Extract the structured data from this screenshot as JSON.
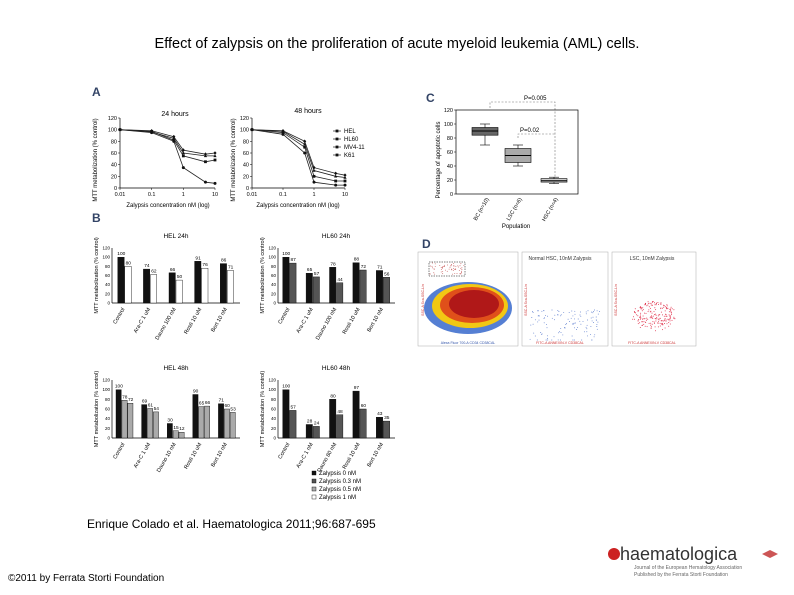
{
  "slide": {
    "title": "Effect of zalypsis on the proliferation of acute myeloid leukemia (AML) cells.",
    "citation": "Enrique Colado et al. Haematologica 2011;96:687-695",
    "copyright": "©2011 by Ferrata Storti Foundation"
  },
  "logo": {
    "name": "haematologica",
    "subtitle1": "Journal of the European Hematology Association",
    "subtitle2": "Published by the Ferrata Storti Foundation"
  },
  "panels": {
    "a_label": "A",
    "b_label": "B",
    "c_label": "C",
    "d_label": "D",
    "a_title_24": "24 hours",
    "a_title_48": "48 hours",
    "a_ylabel": "MTT metabolization (% control)",
    "a_xlabel": "Zalypsis concentration nM (log)",
    "a_legend": [
      "HEL",
      "HL60",
      "MV4-11",
      "K61"
    ],
    "b_titles": [
      "HEL 24h",
      "HL60 24h",
      "HEL 48h",
      "HL60 48h"
    ],
    "b_ylabel": "MTT metabolization (% control)",
    "b_legend": [
      "Zalypsis 0 nM",
      "Zalypsis 0.3 nM",
      "Zalypsis 0.5 nM",
      "Zalypsis 1 nM"
    ],
    "c_ylabel": "Percentage of apoptotic cells",
    "c_xlabel": "Population",
    "c_p1": "P=0.005",
    "c_p2": "P=0.02",
    "d_title_normal": "Normal HSC, 10nM Zalypsis",
    "d_title_lsc": "LSC, 10nM Zalypsis",
    "d_xlabel_left": "Alexa Fluor 700-A CD34 CD38CAL",
    "d_xlabel_right": "FITC-A ANNEXIN-V CD38CAL",
    "d_ylabel": "SSC-A Sca-SSC-Lin"
  },
  "chart_data": [
    {
      "id": "A-24h",
      "type": "line",
      "title": "24 hours",
      "xlabel": "Zalypsis concentration nM (log)",
      "ylabel": "MTT metabolization (% control)",
      "x": [
        0.01,
        0.1,
        0.5,
        1,
        5,
        10
      ],
      "xticks": [
        "0.01",
        "0.1",
        "1",
        "10"
      ],
      "ylim": [
        0,
        120
      ],
      "yticks": [
        "0",
        "20",
        "40",
        "60",
        "80",
        "100",
        "120"
      ],
      "series": [
        {
          "name": "HEL",
          "values": [
            100,
            97,
            82,
            55,
            45,
            48
          ]
        },
        {
          "name": "HL60",
          "values": [
            100,
            95,
            80,
            35,
            10,
            8
          ]
        },
        {
          "name": "MV4-11",
          "values": [
            100,
            96,
            85,
            60,
            55,
            55
          ]
        },
        {
          "name": "K61",
          "values": [
            100,
            98,
            88,
            65,
            58,
            60
          ]
        }
      ]
    },
    {
      "id": "A-48h",
      "type": "line",
      "title": "48 hours",
      "xlabel": "Zalypsis concentration nM (log)",
      "ylabel": "MTT metabolization (% control)",
      "x": [
        0.01,
        0.1,
        0.5,
        1,
        5,
        10
      ],
      "xticks": [
        "0.01",
        "0.1",
        "1",
        "10"
      ],
      "ylim": [
        0,
        120
      ],
      "yticks": [
        "0",
        "20",
        "40",
        "60",
        "80",
        "100",
        "120"
      ],
      "series": [
        {
          "name": "HEL",
          "values": [
            100,
            95,
            70,
            20,
            12,
            12
          ]
        },
        {
          "name": "HL60",
          "values": [
            100,
            92,
            60,
            10,
            5,
            5
          ]
        },
        {
          "name": "MV4-11",
          "values": [
            100,
            97,
            75,
            30,
            20,
            18
          ]
        },
        {
          "name": "K61",
          "values": [
            100,
            98,
            80,
            35,
            25,
            22
          ]
        }
      ]
    },
    {
      "id": "B-HEL-24h",
      "type": "bar",
      "title": "HEL 24h",
      "categories": [
        "Control",
        "Ara-C 1 uM",
        "Dauno 100 nM",
        "Rosti 10 uM",
        "Bort 10 nM"
      ],
      "ylim": [
        0,
        120
      ],
      "series": [
        {
          "name": "Zalypsis 0 nM",
          "values": [
            100,
            74,
            66,
            91,
            86
          ]
        },
        {
          "name": "Zalypsis 1 nM",
          "values": [
            80,
            62,
            50,
            76,
            71
          ]
        }
      ]
    },
    {
      "id": "B-HL60-24h",
      "type": "bar",
      "title": "HL60 24h",
      "categories": [
        "Control",
        "Ara-C 1 uM",
        "Dauno 100 nM",
        "Rosti 10 uM",
        "Bort 10 nM"
      ],
      "ylim": [
        0,
        120
      ],
      "series": [
        {
          "name": "Zalypsis 0 nM",
          "values": [
            100,
            65,
            78,
            88,
            71
          ]
        },
        {
          "name": "Zalypsis 1 nM",
          "values": [
            87,
            57,
            44,
            72,
            56
          ]
        }
      ]
    },
    {
      "id": "B-HEL-48h",
      "type": "bar",
      "title": "HEL 48h",
      "categories": [
        "Control",
        "Ara-C 1 uM",
        "Dauno 10 nM",
        "Rosti 10 uM",
        "Bort 10 nM"
      ],
      "ylim": [
        0,
        120
      ],
      "series": [
        {
          "name": "Zalypsis 0 nM",
          "values": [
            100,
            69,
            30,
            90,
            71
          ]
        },
        {
          "name": "Zalypsis 0.3 nM",
          "values": [
            78,
            61,
            15,
            65,
            60
          ]
        },
        {
          "name": "Zalypsis 0.5 nM",
          "values": [
            72,
            54,
            12,
            66,
            53
          ]
        }
      ]
    },
    {
      "id": "B-HL60-48h",
      "type": "bar",
      "title": "HL60 48h",
      "categories": [
        "Control",
        "Ara-C 1 nM",
        "Dauno 80 nM",
        "Rosti 10 uM",
        "Bort 10 nM"
      ],
      "ylim": [
        0,
        120
      ],
      "series": [
        {
          "name": "Zalypsis 0 nM",
          "values": [
            100,
            28,
            80,
            97,
            43
          ]
        },
        {
          "name": "Zalypsis 0.3 nM",
          "values": [
            57,
            24,
            48,
            60,
            35
          ]
        }
      ]
    },
    {
      "id": "C",
      "type": "box",
      "ylabel": "Percentage of apoptotic cells",
      "xlabel": "Population",
      "categories": [
        "BC (n=10)",
        "LSC (n=6)",
        "HSC (n=4)"
      ],
      "ylim": [
        0,
        120
      ],
      "yticks": [
        "0",
        "20",
        "40",
        "60",
        "80",
        "100",
        "120"
      ],
      "boxes": [
        {
          "min": 70,
          "q1": 84,
          "median": 90,
          "q3": 95,
          "max": 100
        },
        {
          "min": 40,
          "q1": 45,
          "median": 55,
          "q3": 65,
          "max": 70
        },
        {
          "min": 15,
          "q1": 17,
          "median": 19,
          "q3": 22,
          "max": 24
        }
      ]
    }
  ]
}
